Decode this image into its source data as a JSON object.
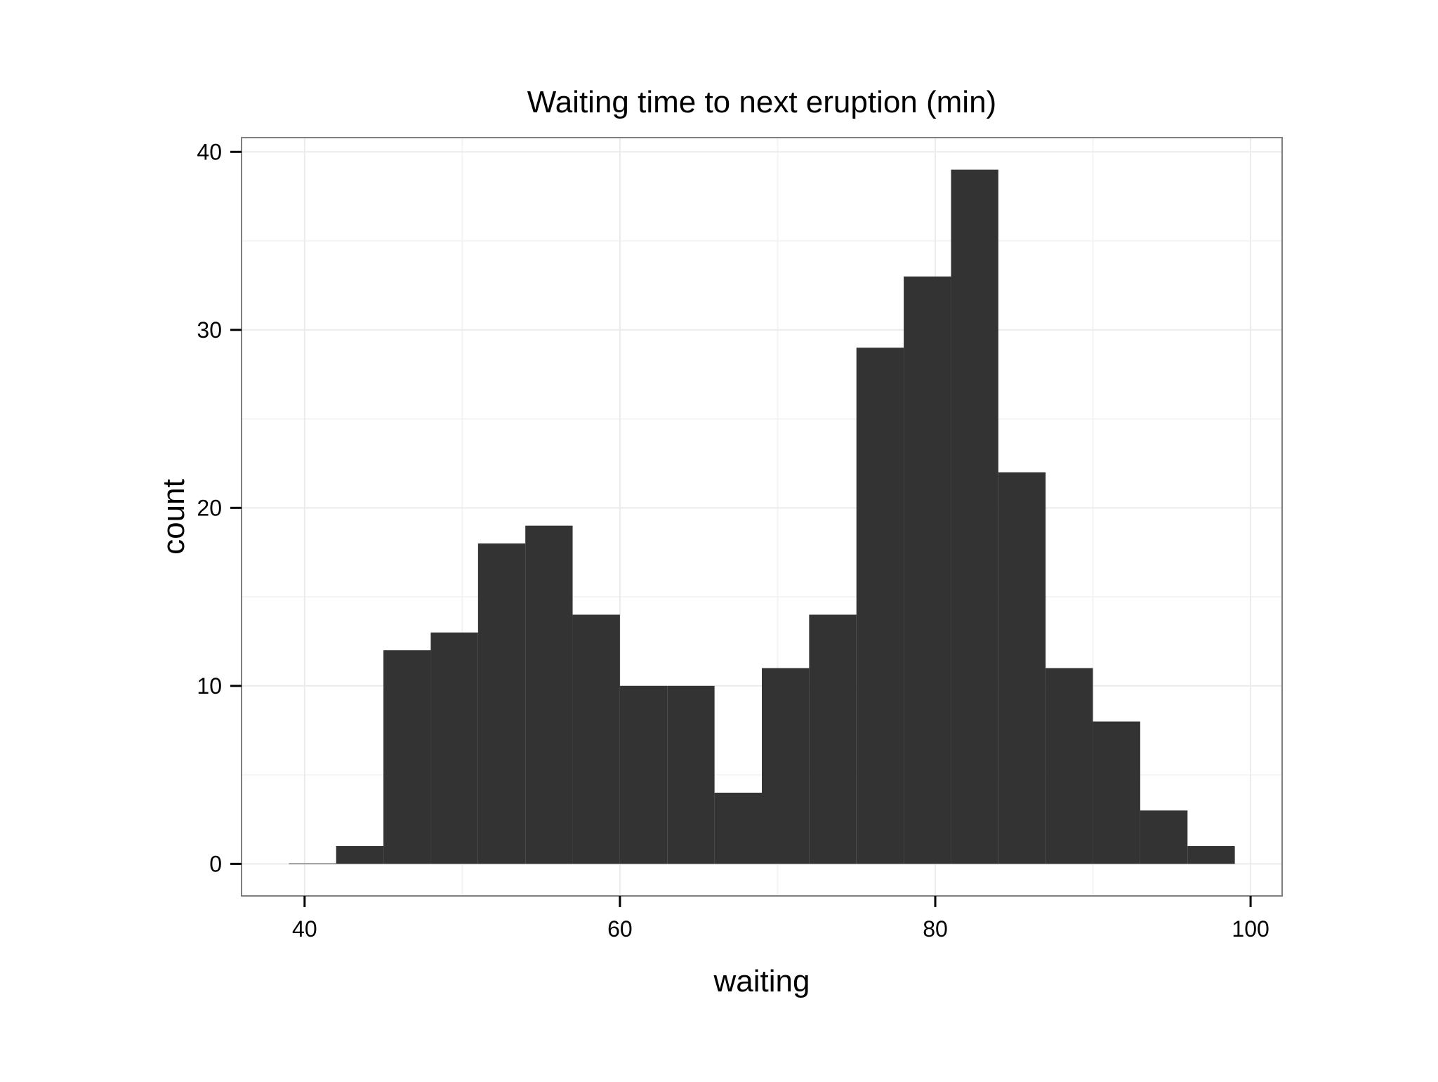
{
  "chart_data": {
    "type": "bar",
    "title": "Waiting time to next eruption (min)",
    "xlabel": "waiting",
    "ylabel": "count",
    "xlim": [
      36,
      102
    ],
    "ylim": [
      -1.8,
      40.8
    ],
    "x_ticks": [
      40,
      60,
      80,
      100
    ],
    "x_tick_labels": [
      "40",
      "60",
      "80",
      "100"
    ],
    "y_ticks": [
      0,
      10,
      20,
      30,
      40
    ],
    "y_tick_labels": [
      "0",
      "10",
      "20",
      "30",
      "40"
    ],
    "bins": [
      {
        "x0": 39,
        "x1": 42,
        "count": 0
      },
      {
        "x0": 42,
        "x1": 45,
        "count": 1
      },
      {
        "x0": 45,
        "x1": 48,
        "count": 12
      },
      {
        "x0": 48,
        "x1": 51,
        "count": 13
      },
      {
        "x0": 51,
        "x1": 54,
        "count": 18
      },
      {
        "x0": 54,
        "x1": 57,
        "count": 19
      },
      {
        "x0": 57,
        "x1": 60,
        "count": 14
      },
      {
        "x0": 60,
        "x1": 63,
        "count": 10
      },
      {
        "x0": 63,
        "x1": 66,
        "count": 10
      },
      {
        "x0": 66,
        "x1": 69,
        "count": 4
      },
      {
        "x0": 69,
        "x1": 72,
        "count": 11
      },
      {
        "x0": 72,
        "x1": 75,
        "count": 14
      },
      {
        "x0": 75,
        "x1": 78,
        "count": 29
      },
      {
        "x0": 78,
        "x1": 81,
        "count": 33
      },
      {
        "x0": 81,
        "x1": 84,
        "count": 39
      },
      {
        "x0": 84,
        "x1": 87,
        "count": 22
      },
      {
        "x0": 87,
        "x1": 90,
        "count": 11
      },
      {
        "x0": 90,
        "x1": 93,
        "count": 8
      },
      {
        "x0": 93,
        "x1": 96,
        "count": 3
      },
      {
        "x0": 96,
        "x1": 99,
        "count": 1
      }
    ],
    "grid": true,
    "bar_color": "#333333",
    "grid_color": "#ebebeb",
    "panel_border_color": "#7f7f7f",
    "legend": "none"
  }
}
